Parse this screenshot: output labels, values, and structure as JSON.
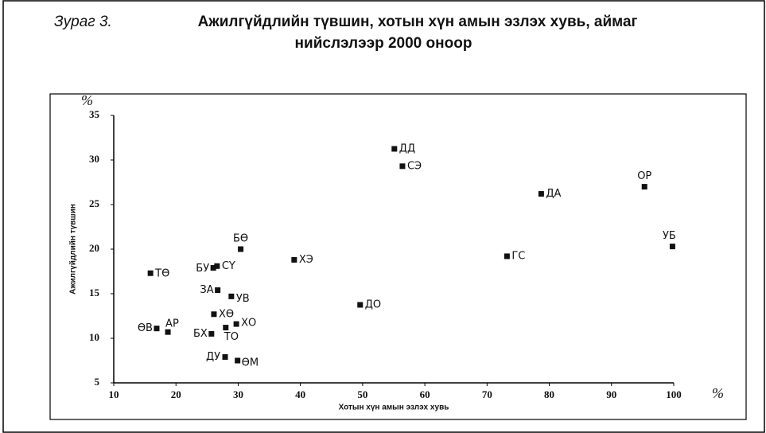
{
  "chart_data": {
    "type": "scatter",
    "figure_label": "Зураг 3.",
    "title": "Ажилгүйдлийн түвшин, хотын хүн амын эзлэх хувь, аймаг",
    "subtitle": "нийслэлээр 2000 оноор",
    "x_label": "Хотын хүн амын эзлэх хувь",
    "y_label": "Ажилгүйдлийн түвшин",
    "x_unit": "%",
    "y_unit": "%",
    "xlim": [
      10,
      100
    ],
    "ylim": [
      5,
      35
    ],
    "xticks": [
      10,
      20,
      30,
      40,
      50,
      60,
      70,
      80,
      90,
      100
    ],
    "yticks": [
      5,
      10,
      15,
      20,
      25,
      30,
      35
    ],
    "color": "#111111",
    "labels": [
      "ДД",
      "СЭ",
      "ДА",
      "ОР",
      "УБ",
      "ГС",
      "БӨ",
      "ХЭ",
      "ТӨ",
      "БУ",
      "СҮ",
      "ЗА",
      "УВ",
      "ДО",
      "ХӨ",
      "ХО",
      "ӨВ",
      "АР",
      "БХ",
      "ТО",
      "ДУ",
      "ӨМ"
    ],
    "x": [
      55.1,
      56.4,
      78.7,
      95.3,
      99.8,
      73.2,
      30.4,
      39.0,
      15.9,
      26.0,
      26.6,
      26.7,
      28.9,
      49.6,
      26.1,
      29.7,
      16.9,
      18.7,
      25.7,
      28.0,
      27.9,
      29.9
    ],
    "values": [
      31.25,
      29.3,
      26.2,
      27.0,
      20.3,
      19.2,
      20.0,
      18.8,
      17.3,
      17.9,
      18.1,
      15.4,
      14.7,
      13.75,
      12.7,
      11.6,
      11.1,
      10.7,
      10.5,
      11.2,
      7.9,
      7.5
    ]
  }
}
